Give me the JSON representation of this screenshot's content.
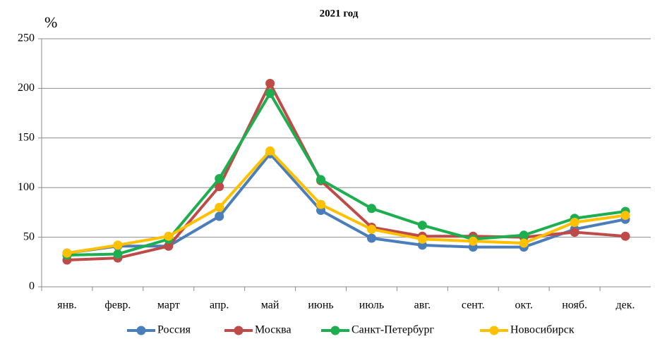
{
  "chart_data": {
    "type": "line",
    "title": "2021 год",
    "y_label": "%",
    "categories": [
      "янв.",
      "февр.",
      "март",
      "апр.",
      "май",
      "июнь",
      "июль",
      "авг.",
      "сент.",
      "окт.",
      "нояб.",
      "дек."
    ],
    "series": [
      {
        "name": "Россия",
        "color": "#4a7ebb",
        "values": [
          34,
          41,
          41,
          71,
          134,
          77,
          49,
          42,
          40,
          40,
          58,
          68
        ]
      },
      {
        "name": "Москва",
        "color": "#be4b48",
        "values": [
          27,
          29,
          41,
          101,
          205,
          107,
          60,
          51,
          51,
          50,
          55,
          51
        ]
      },
      {
        "name": "Санкт-Петербург",
        "color": "#1cae4f",
        "values": [
          32,
          33,
          48,
          109,
          195,
          108,
          79,
          62,
          48,
          52,
          69,
          76
        ]
      },
      {
        "name": "Новосибирск",
        "color": "#ffc000",
        "values": [
          34,
          42,
          51,
          80,
          137,
          83,
          58,
          48,
          46,
          44,
          65,
          72
        ]
      }
    ],
    "ylim": [
      0,
      250
    ],
    "yticks": [
      0,
      50,
      100,
      150,
      200,
      250
    ],
    "grid": true,
    "legend": "bottom"
  }
}
